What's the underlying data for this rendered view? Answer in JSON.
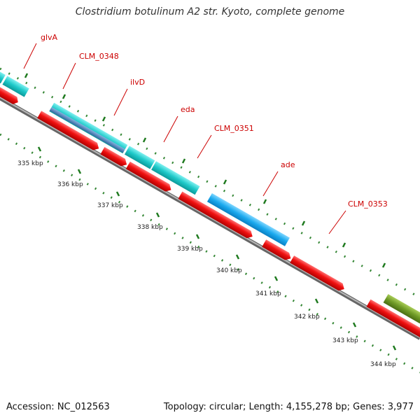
{
  "title": "Clostridium botulinum A2 str. Kyoto, complete genome",
  "footer": {
    "accession": "Accession: NC_012563",
    "summary": "Topology: circular; Length: 4,155,278 bp; Genes: 3,977"
  },
  "colors": {
    "backbone": "#8a8a8a",
    "cds_forward": "#00c8c8",
    "cds_blast": "#00aaff",
    "cds_reverse": "#ee0000",
    "cds_blue_overlay": "#4a78b0",
    "olive_feature": "#6a9a28",
    "gene_label": "#cc0000",
    "ticks": "#1f7a1f"
  },
  "ruler": {
    "unit": "kbp",
    "labels": [
      "335 kbp",
      "336 kbp",
      "337 kbp",
      "338 kbp",
      "339 kbp",
      "340 kbp",
      "341 kbp",
      "342 kbp",
      "343 kbp",
      "344 kbp"
    ]
  },
  "gene_labels": [
    "glvA",
    "CLM_0348",
    "ilvD",
    "eda",
    "CLM_0351",
    "ade",
    "CLM_0353"
  ]
}
